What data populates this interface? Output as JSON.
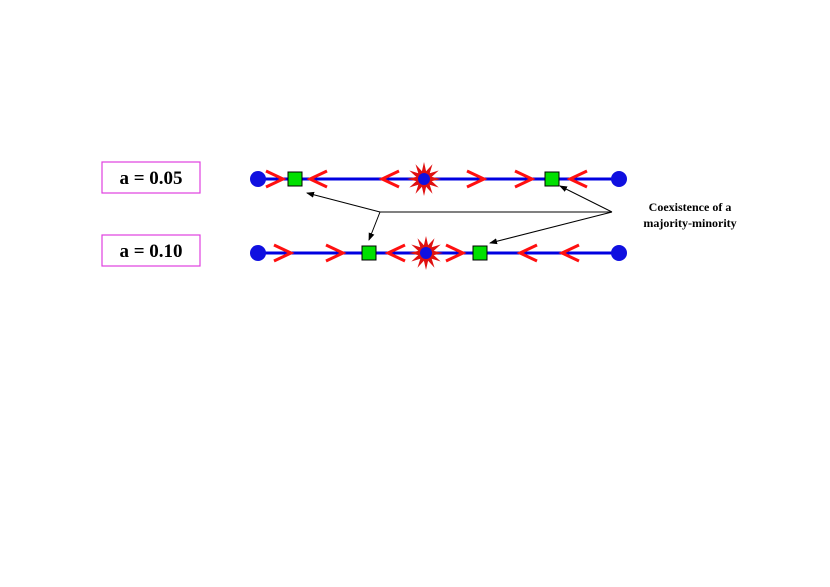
{
  "labels": [
    "a = 0.05",
    "a = 0.10"
  ],
  "annotation": {
    "lines": [
      "Coexistence of a",
      "majority-minority"
    ]
  }
}
